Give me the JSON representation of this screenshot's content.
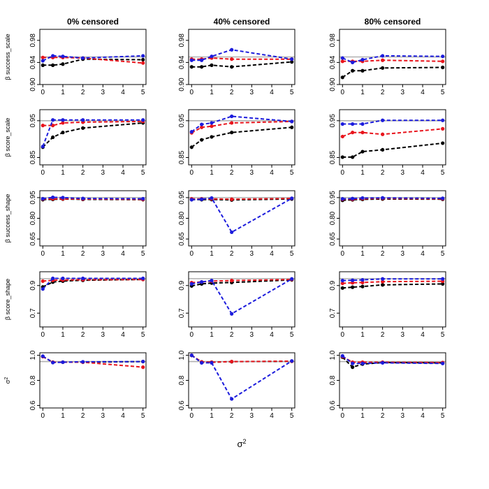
{
  "chart_data": {
    "type": "line",
    "layout": "4x? grid: 5 rows by 3 columns of small-multiple panels",
    "columns": [
      "0% censored",
      "40% censored",
      "80% censored"
    ],
    "x": [
      0,
      0.5,
      1,
      2,
      5
    ],
    "x_ticks": [
      0,
      1,
      2,
      3,
      4,
      5
    ],
    "x_tick_labels": [
      "0",
      "1",
      "2",
      "3",
      "4",
      "5"
    ],
    "xlabel": "σ",
    "xlabel_sup": "2",
    "xlim": [
      -0.15,
      5.15
    ],
    "series_colors": {
      "black": "#000000",
      "red": "#e8141c",
      "blue": "#1c1cdc"
    },
    "reference_color": "#b0b0b0",
    "rows": [
      {
        "ylabel": "β success_scale",
        "ylim": [
          0.9,
          1.0
        ],
        "y_ticks": [
          0.9,
          0.94,
          0.98
        ],
        "y_tick_labels": [
          "0.90",
          "0.94",
          "0.98"
        ],
        "reference": 0.95,
        "panels": [
          {
            "series": [
              {
                "name": "black",
                "values": [
                  0.935,
                  0.935,
                  0.937,
                  0.946,
                  0.945
                ]
              },
              {
                "name": "red",
                "values": [
                  0.949,
                  0.949,
                  0.949,
                  0.948,
                  0.939
                ]
              },
              {
                "name": "blue",
                "values": [
                  0.943,
                  0.952,
                  0.951,
                  0.948,
                  0.952
                ]
              }
            ]
          },
          {
            "series": [
              {
                "name": "black",
                "values": [
                  0.932,
                  0.932,
                  0.935,
                  0.932,
                  0.941
                ]
              },
              {
                "name": "red",
                "values": [
                  0.946,
                  0.946,
                  0.948,
                  0.946,
                  0.946
                ]
              },
              {
                "name": "blue",
                "values": [
                  0.944,
                  0.944,
                  0.951,
                  0.963,
                  0.946
                ]
              }
            ]
          },
          {
            "series": [
              {
                "name": "black",
                "values": [
                  0.913,
                  0.925,
                  0.925,
                  0.93,
                  0.931
                ]
              },
              {
                "name": "red",
                "values": [
                  0.942,
                  0.942,
                  0.942,
                  0.944,
                  0.942
                ]
              },
              {
                "name": "blue",
                "values": [
                  0.948,
                  0.94,
                  0.945,
                  0.952,
                  0.951
                ]
              }
            ]
          }
        ]
      },
      {
        "ylabel": "β score_scale",
        "ylim": [
          0.83,
          0.98
        ],
        "y_ticks": [
          0.85,
          0.95
        ],
        "y_tick_labels": [
          "0.85",
          "0.95"
        ],
        "reference": 0.95,
        "panels": [
          {
            "series": [
              {
                "name": "black",
                "values": [
                  0.878,
                  0.905,
                  0.918,
                  0.93,
                  0.944
                ]
              },
              {
                "name": "red",
                "values": [
                  0.937,
                  0.937,
                  0.944,
                  0.946,
                  0.948
                ]
              },
              {
                "name": "blue",
                "values": [
                  0.88,
                  0.952,
                  0.952,
                  0.952,
                  0.952
                ]
              }
            ]
          },
          {
            "series": [
              {
                "name": "black",
                "values": [
                  0.878,
                  0.898,
                  0.906,
                  0.918,
                  0.932
                ]
              },
              {
                "name": "red",
                "values": [
                  0.917,
                  0.932,
                  0.935,
                  0.944,
                  0.948
                ]
              },
              {
                "name": "blue",
                "values": [
                  0.92,
                  0.94,
                  0.944,
                  0.962,
                  0.948
                ]
              }
            ]
          },
          {
            "series": [
              {
                "name": "black",
                "values": [
                  0.851,
                  0.851,
                  0.866,
                  0.871,
                  0.889
                ]
              },
              {
                "name": "red",
                "values": [
                  0.907,
                  0.918,
                  0.918,
                  0.913,
                  0.928
                ]
              },
              {
                "name": "blue",
                "values": [
                  0.941,
                  0.941,
                  0.941,
                  0.951,
                  0.951
                ]
              }
            ]
          }
        ]
      },
      {
        "ylabel": "β success_shape",
        "ylim": [
          0.6,
          1.0
        ],
        "y_ticks": [
          0.65,
          0.8,
          0.95
        ],
        "y_tick_labels": [
          "0.65",
          "0.80",
          "0.95"
        ],
        "reference": 0.95,
        "panels": [
          {
            "series": [
              {
                "name": "black",
                "values": [
                  0.935,
                  0.937,
                  0.939,
                  0.937,
                  0.935
                ]
              },
              {
                "name": "red",
                "values": [
                  0.94,
                  0.941,
                  0.941,
                  0.94,
                  0.937
                ]
              },
              {
                "name": "blue",
                "values": [
                  0.942,
                  0.952,
                  0.95,
                  0.944,
                  0.942
                ]
              }
            ]
          },
          {
            "series": [
              {
                "name": "black",
                "values": [
                  0.935,
                  0.935,
                  0.936,
                  0.933,
                  0.94
                ]
              },
              {
                "name": "red",
                "values": [
                  0.941,
                  0.941,
                  0.941,
                  0.938,
                  0.944
                ]
              },
              {
                "name": "blue",
                "values": [
                  0.935,
                  0.938,
                  0.947,
                  0.699,
                  0.945
                ]
              }
            ]
          },
          {
            "series": [
              {
                "name": "black",
                "values": [
                  0.93,
                  0.934,
                  0.937,
                  0.94,
                  0.938
                ]
              },
              {
                "name": "red",
                "values": [
                  0.938,
                  0.938,
                  0.942,
                  0.944,
                  0.941
                ]
              },
              {
                "name": "blue",
                "values": [
                  0.941,
                  0.943,
                  0.947,
                  0.948,
                  0.945
                ]
              }
            ]
          }
        ]
      },
      {
        "ylabel": "β score_shape",
        "ylim": [
          0.6,
          1.0
        ],
        "y_ticks": [
          0.7,
          0.9
        ],
        "y_tick_labels": [
          "0.7",
          "0.9"
        ],
        "reference": 0.95,
        "panels": [
          {
            "series": [
              {
                "name": "black",
                "values": [
                  0.89,
                  0.925,
                  0.932,
                  0.938,
                  0.944
                ]
              },
              {
                "name": "red",
                "values": [
                  0.932,
                  0.938,
                  0.94,
                  0.942,
                  0.944
                ]
              },
              {
                "name": "blue",
                "values": [
                  0.875,
                  0.952,
                  0.952,
                  0.952,
                  0.952
                ]
              }
            ]
          },
          {
            "series": [
              {
                "name": "black",
                "values": [
                  0.897,
                  0.912,
                  0.918,
                  0.922,
                  0.941
                ]
              },
              {
                "name": "red",
                "values": [
                  0.921,
                  0.926,
                  0.932,
                  0.936,
                  0.944
                ]
              },
              {
                "name": "blue",
                "values": [
                  0.912,
                  0.926,
                  0.936,
                  0.695,
                  0.948
                ]
              }
            ]
          },
          {
            "series": [
              {
                "name": "black",
                "values": [
                  0.882,
                  0.888,
                  0.893,
                  0.905,
                  0.912
                ]
              },
              {
                "name": "red",
                "values": [
                  0.916,
                  0.92,
                  0.922,
                  0.928,
                  0.931
                ]
              },
              {
                "name": "blue",
                "values": [
                  0.936,
                  0.938,
                  0.941,
                  0.948,
                  0.948
                ]
              }
            ]
          }
        ]
      },
      {
        "ylabel": "σ",
        "ylabel_sup": "2",
        "ylim": [
          0.58,
          1.02
        ],
        "y_ticks": [
          0.6,
          0.8,
          1.0
        ],
        "y_tick_labels": [
          "0.6",
          "0.8",
          "1.0"
        ],
        "reference": 0.95,
        "panels": [
          {
            "series": [
              {
                "name": "black",
                "values": [
                  0.99,
                  0.945,
                  0.945,
                  0.945,
                  0.95
                ]
              },
              {
                "name": "red",
                "values": [
                  0.99,
                  0.945,
                  0.945,
                  0.945,
                  0.905
                ]
              },
              {
                "name": "blue",
                "values": [
                  0.993,
                  0.942,
                  0.945,
                  0.948,
                  0.95
                ]
              }
            ]
          },
          {
            "series": [
              {
                "name": "black",
                "values": [
                  0.999,
                  0.947,
                  0.945,
                  0.949,
                  0.952
                ]
              },
              {
                "name": "red",
                "values": [
                  1.0,
                  0.947,
                  0.945,
                  0.95,
                  0.953
                ]
              },
              {
                "name": "blue",
                "values": [
                  1.0,
                  0.94,
                  0.94,
                  0.652,
                  0.955
                ]
              }
            ]
          },
          {
            "series": [
              {
                "name": "black",
                "values": [
                  0.985,
                  0.905,
                  0.93,
                  0.942,
                  0.94
                ]
              },
              {
                "name": "red",
                "values": [
                  0.99,
                  0.945,
                  0.945,
                  0.945,
                  0.942
                ]
              },
              {
                "name": "blue",
                "values": [
                  0.995,
                  0.935,
                  0.935,
                  0.94,
                  0.935
                ]
              }
            ]
          }
        ]
      }
    ]
  }
}
